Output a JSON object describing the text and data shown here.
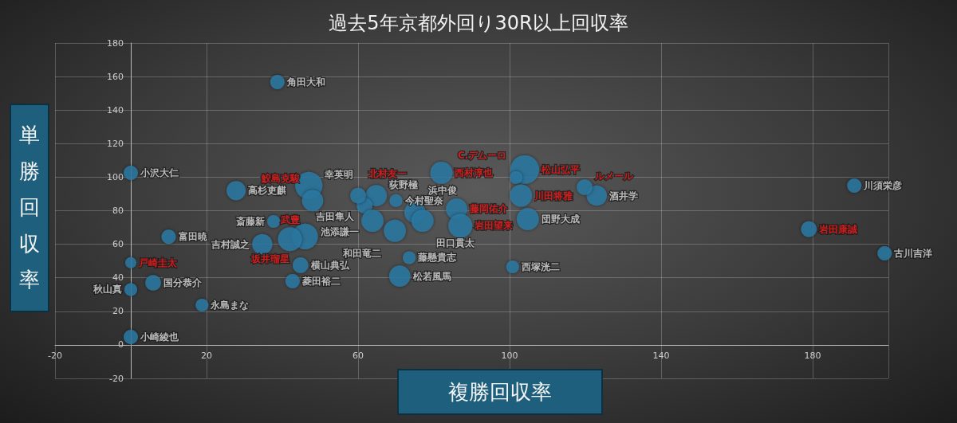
{
  "chart_data": {
    "type": "bubble",
    "title": "過去5年京都外回り30R以上回収率",
    "xlabel": "複勝回収率",
    "ylabel": "単勝回収率",
    "xlim": [
      -20,
      200
    ],
    "xticks": [
      -20,
      20,
      60,
      100,
      140,
      180
    ],
    "ylim": [
      -20,
      180
    ],
    "yticks": [
      -20,
      0,
      20,
      40,
      60,
      80,
      100,
      120,
      140,
      160,
      180
    ],
    "grid": true,
    "marker": "circle",
    "series": [
      {
        "color": "#2b7ca8",
        "x": [
          38.7,
          0,
          27.8,
          47,
          37.7,
          10,
          34.7,
          44.8,
          42.7,
          5.9,
          0,
          18.8,
          0,
          64.8,
          70,
          61.7,
          63.8,
          75,
          77,
          69.7,
          73.5,
          71,
          100.8,
          104.8,
          123,
          191,
          199
        ],
        "values": [
          156.7,
          102.6,
          92,
          95,
          73.6,
          64.5,
          60,
          47.5,
          38,
          37,
          33,
          23.7,
          4.7,
          89,
          86,
          83,
          74,
          79,
          74,
          68,
          52,
          41,
          46.5,
          75,
          89,
          95,
          54.6
        ],
        "sizes": [
          0.25,
          0.25,
          0.45,
          0.9,
          0.2,
          0.25,
          0.5,
          0.3,
          0.25,
          0.3,
          0.2,
          0.2,
          0.25,
          0.55,
          0.2,
          0.3,
          0.6,
          0.55,
          0.6,
          0.6,
          0.2,
          0.55,
          0.2,
          0.6,
          0.5,
          0.25,
          0.25
        ],
        "value_labels": [
          "角田大和",
          "小沢大仁",
          "高杉吏麒",
          "幸英明",
          "斎藤新",
          "富田暁",
          "吉村誠之",
          "横山典弘",
          "菱田裕二",
          "国分恭介",
          "秋山真",
          "永島まな",
          "小崎綾也",
          "荻野極",
          "今村聖奈",
          "吉田隼人",
          "池添謙一",
          "浜中俊",
          "田口貫太",
          "和田竜二",
          "藤懸貴志",
          "松若風馬",
          "西塚洸二",
          "団野大成",
          "酒井学",
          "川須栄彦",
          "古川吉洋"
        ]
      },
      {
        "color": "#2b7ca8",
        "x": [
          0,
          48,
          46,
          42,
          60,
          82,
          86,
          87,
          104,
          101.7,
          103,
          119.8,
          179
        ],
        "values": [
          49,
          86,
          64.6,
          63,
          89,
          102.6,
          81,
          71,
          104.5,
          99.7,
          89,
          94,
          69
        ],
        "sizes": [
          0.15,
          0.55,
          0.8,
          0.7,
          0.3,
          0.6,
          0.55,
          0.7,
          1,
          0.2,
          0.6,
          0.3,
          0.3
        ],
        "value_labels": [
          "戸崎圭太",
          "鮫島克駿",
          "坂井瑠星",
          "武豊",
          "北村友一",
          "西村淳也",
          "藤岡佑介",
          "岩田望来",
          "松山弘平",
          "C.デムーロ",
          "川田将雅",
          "ルメール",
          "岩田康誠"
        ]
      }
    ]
  }
}
